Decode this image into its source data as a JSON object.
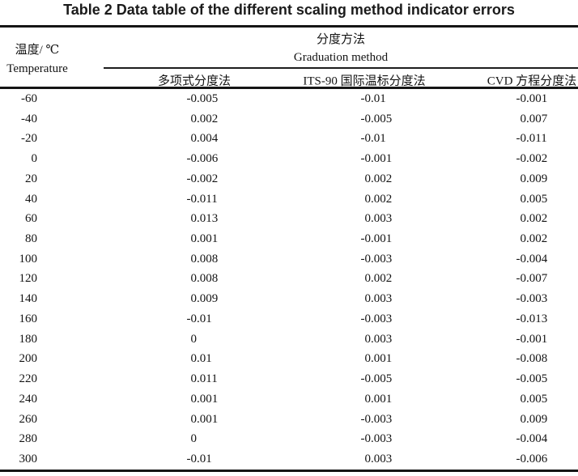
{
  "title": "Table 2 Data table of the different scaling method indicator errors",
  "table": {
    "row_header": {
      "zh": "温度/ ℃",
      "en": "Temperature"
    },
    "column_group": {
      "zh": "分度方法",
      "en": "Graduation method"
    },
    "columns": [
      "多项式分度法",
      "ITS-90 国际温标分度法",
      "CVD 方程分度法"
    ],
    "rows": [
      {
        "temp": "-60",
        "values": [
          "-0.005",
          "-0.01",
          "-0.001"
        ]
      },
      {
        "temp": "-40",
        "values": [
          "0.002",
          "-0.005",
          "0.007"
        ]
      },
      {
        "temp": "-20",
        "values": [
          "0.004",
          "-0.01",
          "-0.011"
        ]
      },
      {
        "temp": "0",
        "values": [
          "-0.006",
          "-0.001",
          "-0.002"
        ]
      },
      {
        "temp": "20",
        "values": [
          "-0.002",
          "0.002",
          "0.009"
        ]
      },
      {
        "temp": "40",
        "values": [
          "-0.011",
          "0.002",
          "0.005"
        ]
      },
      {
        "temp": "60",
        "values": [
          "0.013",
          "0.003",
          "0.002"
        ]
      },
      {
        "temp": "80",
        "values": [
          "0.001",
          "-0.001",
          "0.002"
        ]
      },
      {
        "temp": "100",
        "values": [
          "0.008",
          "-0.003",
          "-0.004"
        ]
      },
      {
        "temp": "120",
        "values": [
          "0.008",
          "0.002",
          "-0.007"
        ]
      },
      {
        "temp": "140",
        "values": [
          "0.009",
          "0.003",
          "-0.003"
        ]
      },
      {
        "temp": "160",
        "values": [
          "-0.01",
          "-0.003",
          "-0.013"
        ]
      },
      {
        "temp": "180",
        "values": [
          "0",
          "0.003",
          "-0.001"
        ]
      },
      {
        "temp": "200",
        "values": [
          "0.01",
          "0.001",
          "-0.008"
        ]
      },
      {
        "temp": "220",
        "values": [
          "0.011",
          "-0.005",
          "-0.005"
        ]
      },
      {
        "temp": "240",
        "values": [
          "0.001",
          "0.001",
          "0.005"
        ]
      },
      {
        "temp": "260",
        "values": [
          "0.001",
          "-0.003",
          "0.009"
        ]
      },
      {
        "temp": "280",
        "values": [
          "0",
          "-0.003",
          "-0.004"
        ]
      },
      {
        "temp": "300",
        "values": [
          "-0.01",
          "0.003",
          "-0.006"
        ]
      }
    ]
  }
}
